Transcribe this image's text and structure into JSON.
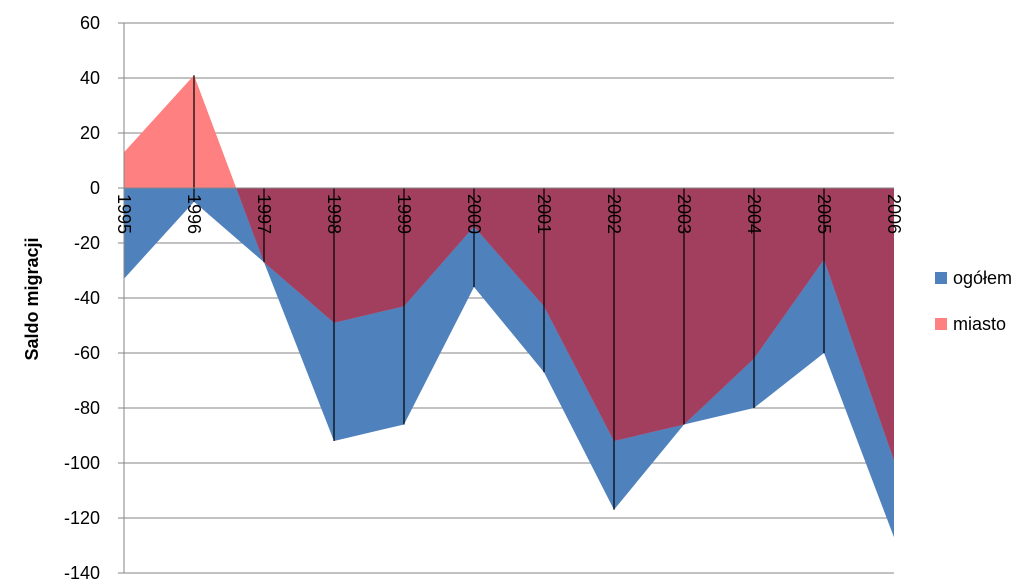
{
  "chart_data": {
    "type": "area",
    "categories": [
      "1995",
      "1996",
      "1997",
      "1998",
      "1999",
      "2000",
      "2001",
      "2002",
      "2003",
      "2004",
      "2005",
      "2006"
    ],
    "series": [
      {
        "name": "ogółem",
        "color": "#4f81bd",
        "values": [
          -33,
          -5,
          -27,
          -92,
          -86,
          -36,
          -67,
          -117,
          -86,
          -80,
          -60,
          -127
        ]
      },
      {
        "name": "miasto",
        "color": "#ff8080",
        "values": [
          13,
          41,
          -27,
          -49,
          -43,
          -14,
          -43,
          -92,
          -86,
          -62,
          -26,
          -99
        ]
      }
    ],
    "overlap_color": "#a33f5e",
    "title": "",
    "xlabel": "",
    "ylabel": "Saldo migracji",
    "ylim": [
      -140,
      60
    ],
    "yticks": [
      60,
      40,
      20,
      0,
      -20,
      -40,
      -60,
      -80,
      -100,
      -120,
      -140
    ],
    "grid": true,
    "legend": "right"
  }
}
